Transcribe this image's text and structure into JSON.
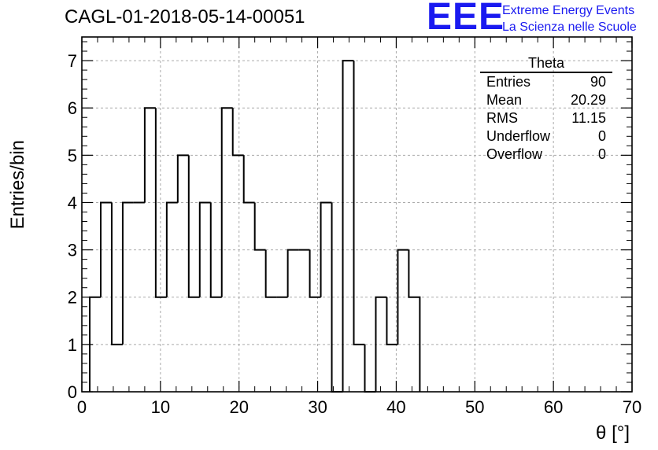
{
  "title": "CAGL-01-2018-05-14-00051",
  "logo": {
    "mark": "EEE",
    "line1": "Extreme Energy Events",
    "line2": "La Scienza nelle Scuole",
    "color": "#1a1af0"
  },
  "stats": {
    "name": "Theta",
    "rows": [
      {
        "label": "Entries",
        "value": "90"
      },
      {
        "label": "Mean",
        "value": "20.29"
      },
      {
        "label": "RMS",
        "value": "11.15"
      },
      {
        "label": "Underflow",
        "value": "0"
      },
      {
        "label": "Overflow",
        "value": "0"
      }
    ]
  },
  "chart_data": {
    "type": "bar",
    "histogram": "step",
    "bin_width": 1.4,
    "bin_edges_start": 1.0,
    "bin_counts": [
      2,
      4,
      1,
      4,
      4,
      6,
      2,
      4,
      5,
      2,
      4,
      2,
      6,
      5,
      4,
      3,
      2,
      2,
      3,
      3,
      2,
      4,
      0,
      7,
      1,
      0,
      2,
      1,
      3,
      2
    ],
    "xlabel": "θ [°]",
    "ylabel": "Entries/bin",
    "xlim": [
      0,
      70
    ],
    "ylim": [
      0,
      7.5
    ],
    "x_ticks": [
      "0",
      "10",
      "20",
      "30",
      "40",
      "50",
      "60",
      "70"
    ],
    "y_ticks": [
      "0",
      "1",
      "2",
      "3",
      "4",
      "5",
      "6",
      "7"
    ],
    "grid": true,
    "line_color": "#000000"
  }
}
